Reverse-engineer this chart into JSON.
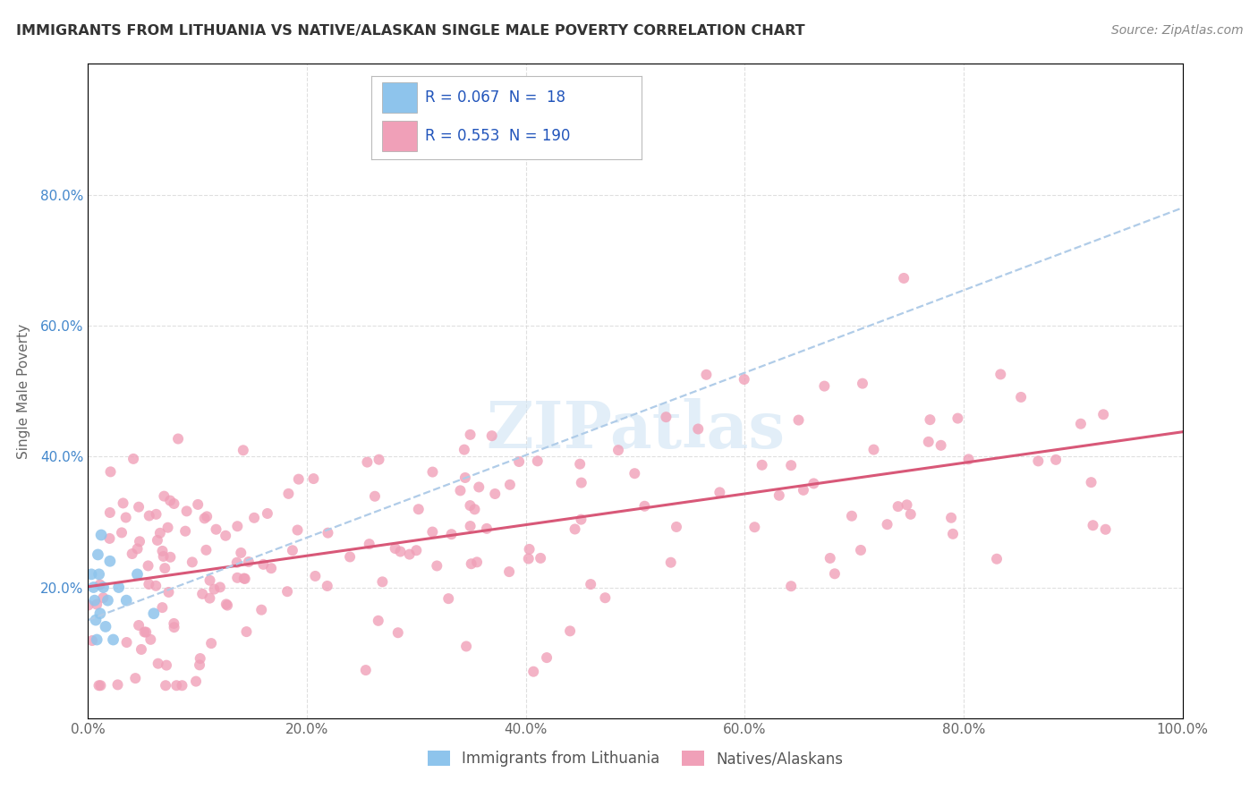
{
  "title": "IMMIGRANTS FROM LITHUANIA VS NATIVE/ALASKAN SINGLE MALE POVERTY CORRELATION CHART",
  "source": "Source: ZipAtlas.com",
  "ylabel": "Single Male Poverty",
  "xlabel": "",
  "legend_label_blue": "Immigrants from Lithuania",
  "legend_label_pink": "Natives/Alaskans",
  "r_blue": 0.067,
  "n_blue": 18,
  "r_pink": 0.553,
  "n_pink": 190,
  "xlim": [
    0,
    100
  ],
  "ylim": [
    0,
    100
  ],
  "xticks": [
    0,
    20,
    40,
    60,
    80,
    100
  ],
  "yticks": [
    20,
    40,
    60,
    80
  ],
  "xtick_labels": [
    "0.0%",
    "20.0%",
    "40.0%",
    "60.0%",
    "80.0%",
    "100.0%"
  ],
  "ytick_labels": [
    "20.0%",
    "40.0%",
    "60.0%",
    "80.0%"
  ],
  "color_blue": "#8ec4ec",
  "color_pink": "#f0a0b8",
  "color_blue_line": "#b0cce8",
  "color_pink_line": "#d85878",
  "background_color": "#ffffff",
  "watermark_color": "#d0e4f4",
  "grid_color": "#d8d8d8",
  "title_color": "#333333",
  "source_color": "#888888",
  "tick_color_x": "#666666",
  "tick_color_y": "#4488cc",
  "ylabel_color": "#666666"
}
